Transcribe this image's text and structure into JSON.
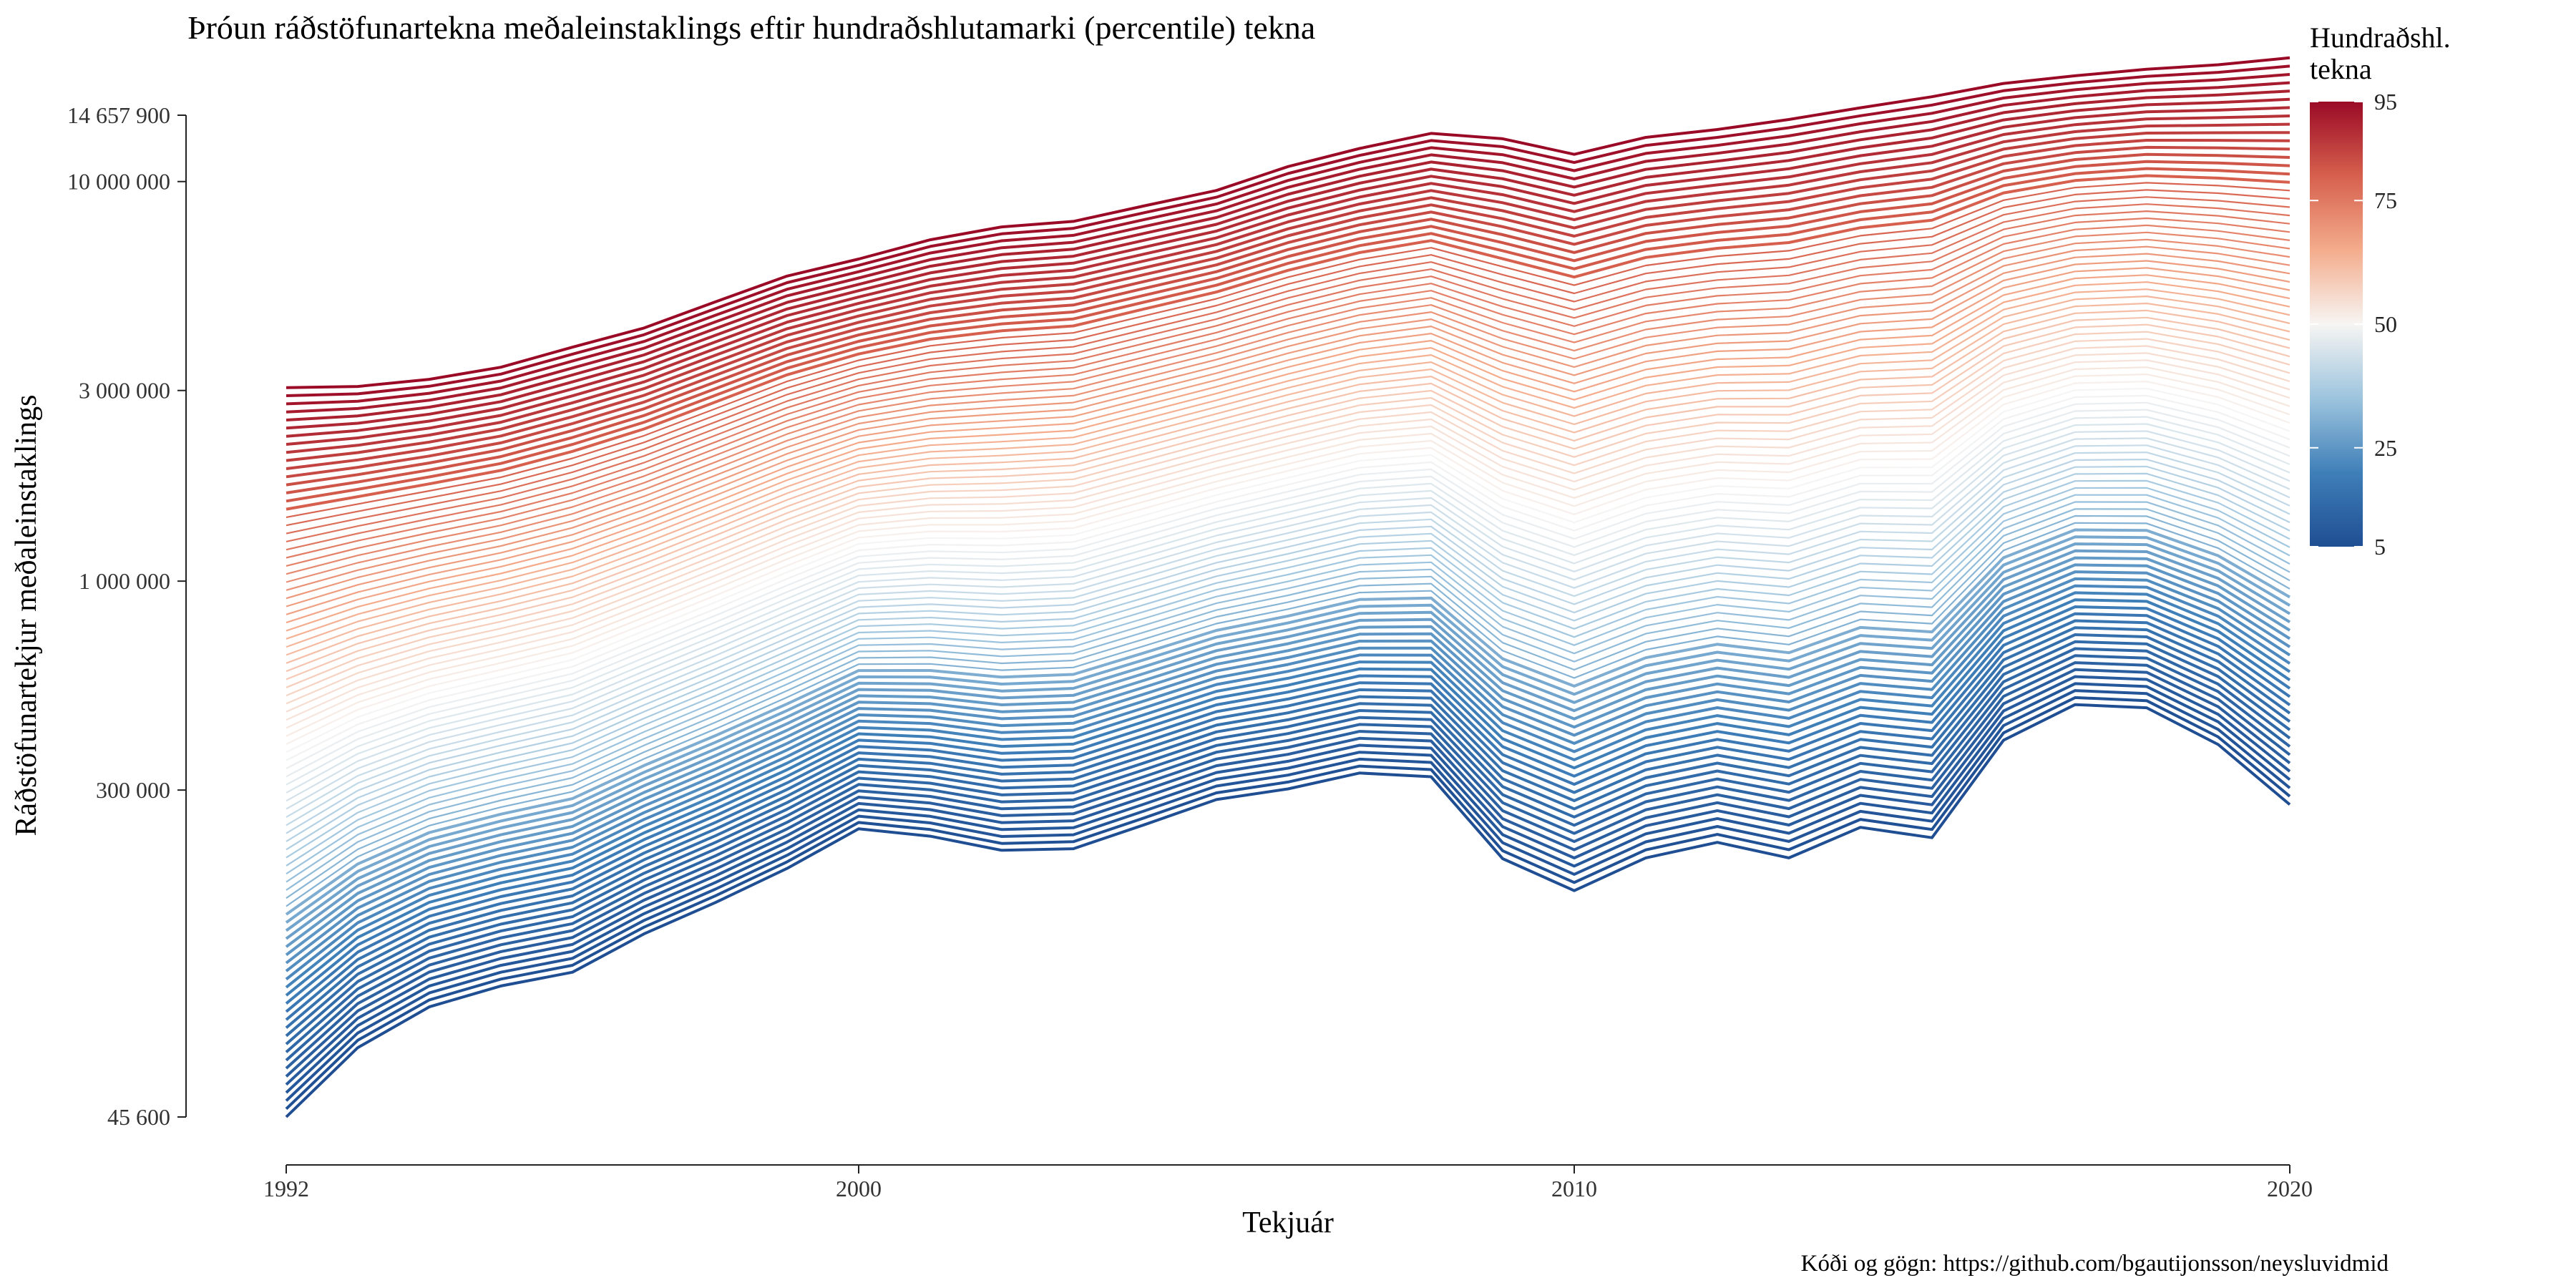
{
  "chart_data": {
    "type": "line",
    "title": "Þróun ráðstöfunartekna meðaleinstaklings eftir hundraðshlutamarki (percentile) tekna",
    "xlabel": "Tekjuár",
    "ylabel": "Ráðstöfunartekjur meðaleinstaklings",
    "caption": "Kóði og gögn: https://github.com/bgautijonsson/neysluvidmid",
    "x": [
      1992,
      1993,
      1994,
      1995,
      1996,
      1997,
      1998,
      1999,
      2000,
      2001,
      2002,
      2003,
      2004,
      2005,
      2006,
      2007,
      2008,
      2009,
      2010,
      2011,
      2012,
      2013,
      2014,
      2015,
      2016,
      2017,
      2018,
      2019,
      2020
    ],
    "x_ticks": [
      1992,
      2000,
      2010,
      2020
    ],
    "x_tick_labels": [
      "1992",
      "2000",
      "2010",
      "2020"
    ],
    "y_scale": "log",
    "ylim": [
      45600,
      14657900
    ],
    "y_ticks": [
      45600,
      300000,
      1000000,
      3000000,
      10000000,
      14657900
    ],
    "y_tick_labels": [
      "45 600",
      "300 000",
      "1 000 000",
      "3 000 000",
      "10 000 000",
      "14 657 900"
    ],
    "percentiles": {
      "from": 5,
      "to": 95,
      "step": 1
    },
    "bottom_series": {
      "name": "5",
      "values": [
        45600,
        68000,
        86000,
        97000,
        105000,
        131000,
        157000,
        191000,
        240000,
        230000,
        212000,
        214000,
        246000,
        284000,
        302000,
        331000,
        324000,
        202000,
        168000,
        203000,
        222000,
        203000,
        242000,
        228000,
        400000,
        491000,
        482000,
        390000,
        276000
      ]
    },
    "top_series": {
      "name": "95",
      "values": [
        3050000,
        3070000,
        3200000,
        3430000,
        3850000,
        4300000,
        5000000,
        5800000,
        6400000,
        7150000,
        7700000,
        7950000,
        8700000,
        9500000,
        10900000,
        12100000,
        13200000,
        12800000,
        11700000,
        12900000,
        13500000,
        14300000,
        15300000,
        16300000,
        17600000,
        18400000,
        19100000,
        19600000,
        20400000
      ]
    },
    "legend": {
      "title": "Hundraðshl. tekna",
      "position": "top-right",
      "type": "colorbar",
      "ticks": [
        5,
        25,
        50,
        75,
        95
      ],
      "tick_labels": [
        "5",
        "25",
        "50",
        "75",
        "95"
      ],
      "colors": [
        "#1f4e93",
        "#3f7fb8",
        "#9dc4de",
        "#f7f5f3",
        "#f4ac8c",
        "#d6604d",
        "#9a0a26"
      ]
    },
    "grid": false
  }
}
